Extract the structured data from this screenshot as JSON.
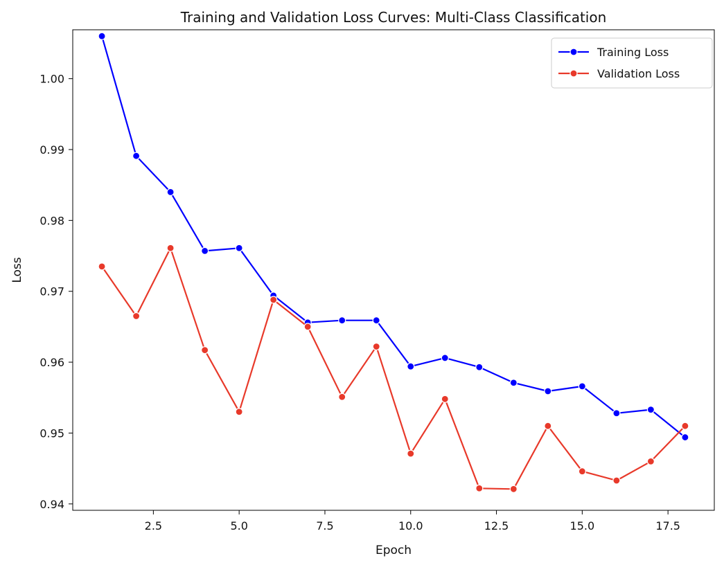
{
  "chart_data": {
    "type": "line",
    "title": "Training and Validation Loss Curves: Multi-Class Classification",
    "xlabel": "Epoch",
    "ylabel": "Loss",
    "xlim": [
      0.15,
      18.85
    ],
    "ylim": [
      0.9391,
      1.0069
    ],
    "xticks": [
      2.5,
      5.0,
      7.5,
      10.0,
      12.5,
      15.0,
      17.5
    ],
    "xtick_labels": [
      "2.5",
      "5.0",
      "7.5",
      "10.0",
      "12.5",
      "15.0",
      "17.5"
    ],
    "yticks": [
      0.94,
      0.95,
      0.96,
      0.97,
      0.98,
      0.99,
      1.0
    ],
    "ytick_labels": [
      "0.94",
      "0.95",
      "0.96",
      "0.97",
      "0.98",
      "0.99",
      "1.00"
    ],
    "grid": false,
    "legend_position": "top-right",
    "x": [
      1,
      2,
      3,
      4,
      5,
      6,
      7,
      8,
      9,
      10,
      11,
      12,
      13,
      14,
      15,
      16,
      17,
      18
    ],
    "series": [
      {
        "name": "Training Loss",
        "color": "#0000ff",
        "values": [
          1.006,
          0.9891,
          0.984,
          0.9757,
          0.9761,
          0.9694,
          0.9656,
          0.9659,
          0.9659,
          0.9594,
          0.9606,
          0.9593,
          0.9571,
          0.9559,
          0.9566,
          0.9528,
          0.9533,
          0.9494
        ]
      },
      {
        "name": "Validation Loss",
        "color": "#e8392a",
        "values": [
          0.9735,
          0.9665,
          0.9761,
          0.9617,
          0.953,
          0.9688,
          0.965,
          0.9551,
          0.9622,
          0.9471,
          0.9548,
          0.9422,
          0.9421,
          0.951,
          0.9446,
          0.9433,
          0.946,
          0.951
        ]
      }
    ]
  }
}
